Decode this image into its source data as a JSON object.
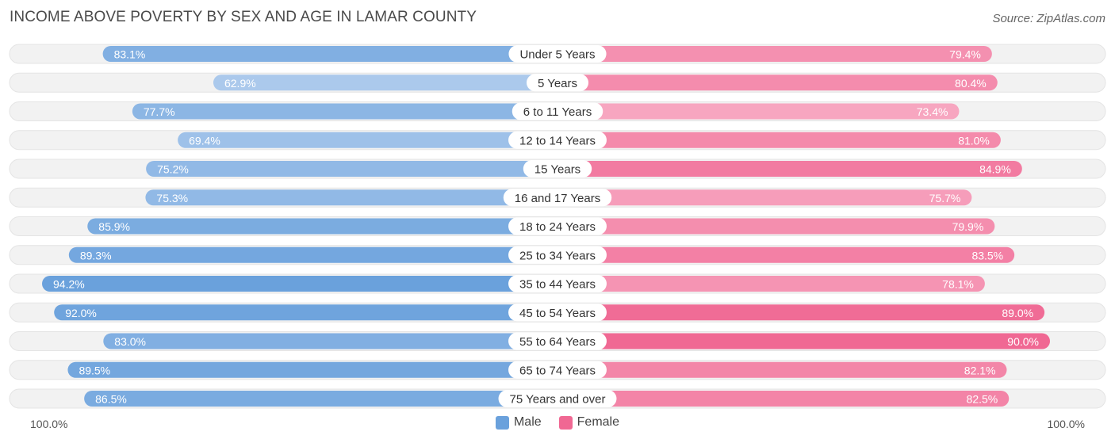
{
  "title": "INCOME ABOVE POVERTY BY SEX AND AGE IN LAMAR COUNTY",
  "source": "Source: ZipAtlas.com",
  "axis": {
    "left_label": "100.0%",
    "right_label": "100.0%"
  },
  "legend": {
    "male": "Male",
    "female": "Female"
  },
  "colors": {
    "male_strong": "#6aa1dc",
    "male_light": "#abc9ec",
    "female_strong": "#f06893",
    "female_light": "#f7a6c0",
    "row_background": "#f2f2f2"
  },
  "chart_data": {
    "type": "bar",
    "orientation": "horizontal-diverging",
    "categories": [
      "Under 5 Years",
      "5 Years",
      "6 to 11 Years",
      "12 to 14 Years",
      "15 Years",
      "16 and 17 Years",
      "18 to 24 Years",
      "25 to 34 Years",
      "35 to 44 Years",
      "45 to 54 Years",
      "55 to 64 Years",
      "65 to 74 Years",
      "75 Years and over"
    ],
    "series": [
      {
        "name": "Male",
        "values": [
          83.1,
          62.9,
          77.7,
          69.4,
          75.2,
          75.3,
          85.9,
          89.3,
          94.2,
          92.0,
          83.0,
          89.5,
          86.5
        ],
        "labels": [
          "83.1%",
          "62.9%",
          "77.7%",
          "69.4%",
          "75.2%",
          "75.3%",
          "85.9%",
          "89.3%",
          "94.2%",
          "92.0%",
          "83.0%",
          "89.5%",
          "86.5%"
        ]
      },
      {
        "name": "Female",
        "values": [
          79.4,
          80.4,
          73.4,
          81.0,
          84.9,
          75.7,
          79.9,
          83.5,
          78.1,
          89.0,
          90.0,
          82.1,
          82.5
        ],
        "labels": [
          "79.4%",
          "80.4%",
          "73.4%",
          "81.0%",
          "84.9%",
          "75.7%",
          "79.9%",
          "83.5%",
          "78.1%",
          "89.0%",
          "90.0%",
          "82.1%",
          "82.5%"
        ]
      }
    ],
    "xlim": [
      0,
      100
    ],
    "legend_position": "bottom-center"
  }
}
